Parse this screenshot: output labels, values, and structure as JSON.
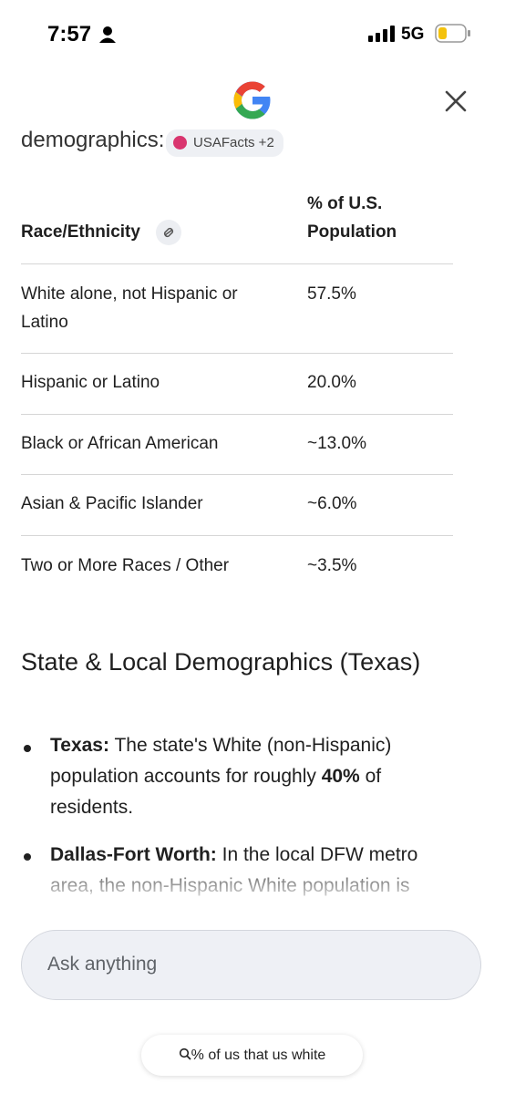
{
  "status_bar": {
    "time": "7:57",
    "network": "5G"
  },
  "answer": {
    "intro_tail": "demographics:",
    "source_chip": "USAFacts +2",
    "table": {
      "headers": [
        "Race/Ethnicity",
        "% of U.S. Population"
      ],
      "rows": [
        [
          "White alone, not Hispanic or Latino",
          "57.5%"
        ],
        [
          "Hispanic or Latino",
          "20.0%"
        ],
        [
          "Black or African American",
          "~13.0%"
        ],
        [
          "Asian & Pacific Islander",
          "~6.0%"
        ],
        [
          "Two or More Races / Other",
          "~3.5%"
        ]
      ]
    },
    "section_heading": "State & Local Demographics (Texas)",
    "bullets": [
      {
        "label": "Texas:",
        "text": " The state's White (non-Hispanic) population accounts for roughly ",
        "emphasis": "40%",
        "text_end": " of residents."
      },
      {
        "label": "Dallas-Fort Worth:",
        "text": " In the local DFW metro area, the non-Hispanic White population is"
      }
    ]
  },
  "input": {
    "placeholder": "Ask anything"
  },
  "query_chip": "% of us that us white"
}
